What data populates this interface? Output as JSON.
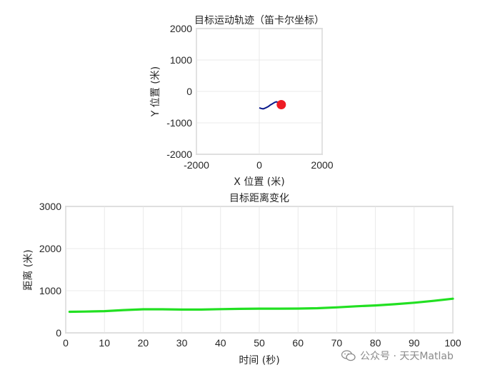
{
  "chart_data": [
    {
      "type": "line",
      "title": "目标运动轨迹（笛卡尔坐标）",
      "xlabel": "X 位置 (米)",
      "ylabel": "Y 位置 (米)",
      "xlim": [
        -2000,
        2000
      ],
      "ylim": [
        -2000,
        2000
      ],
      "xticks": [
        "-2000",
        "0",
        "2000"
      ],
      "yticks": [
        "2000",
        "1000",
        "0",
        "-1000",
        "-2000"
      ],
      "grid": true,
      "colors": {
        "trajectory": "#0a1a8c",
        "target": "#ee1c24"
      },
      "series": [
        {
          "x": [
            0,
            60,
            120,
            180,
            240,
            300,
            360,
            420,
            480,
            540,
            600,
            660,
            700
          ],
          "y": [
            -520,
            -540,
            -555,
            -535,
            -505,
            -470,
            -425,
            -390,
            -355,
            -330,
            -350,
            -390,
            -420
          ]
        }
      ],
      "marker": {
        "x": 700,
        "y": -420
      }
    },
    {
      "type": "line",
      "title": "目标距离变化",
      "xlabel": "时间 (秒)",
      "ylabel": "距离 (米)",
      "xlim": [
        0,
        100
      ],
      "ylim": [
        0,
        3000
      ],
      "xticks": [
        "0",
        "10",
        "20",
        "30",
        "40",
        "50",
        "60",
        "70",
        "80",
        "90",
        "100"
      ],
      "yticks": [
        "3000",
        "2000",
        "1000",
        "0"
      ],
      "grid": true,
      "colors": {
        "line": "#22e022"
      },
      "series": [
        {
          "x": [
            1,
            5,
            10,
            15,
            20,
            25,
            30,
            35,
            40,
            45,
            50,
            55,
            60,
            65,
            70,
            75,
            80,
            85,
            90,
            95,
            100
          ],
          "values": [
            500,
            505,
            515,
            540,
            560,
            560,
            552,
            552,
            562,
            570,
            575,
            575,
            576,
            585,
            605,
            630,
            650,
            680,
            715,
            760,
            810
          ]
        }
      ]
    }
  ],
  "watermark": {
    "text": "公众号 · 天天Matlab",
    "icon": "wechat-icon"
  }
}
